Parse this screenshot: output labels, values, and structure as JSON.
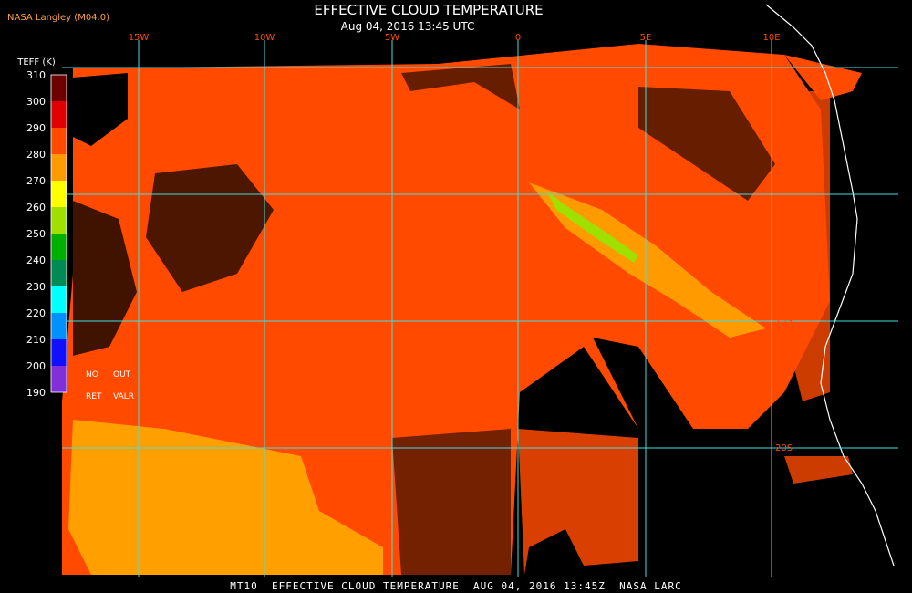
{
  "header": {
    "source": "NASA Langley (M04.0)",
    "title": "EFFECTIVE CLOUD TEMPERATURE",
    "timestamp": "Aug 04, 2016 13:45 UTC"
  },
  "longitude_labels": [
    "15W",
    "10W",
    "5W",
    "0",
    "5E",
    "10E"
  ],
  "latitude_labels": [
    "15S",
    "20S"
  ],
  "legend": {
    "title": "TEFF (K)",
    "ticks": [
      310,
      300,
      290,
      280,
      270,
      260,
      250,
      240,
      230,
      220,
      210,
      200,
      190
    ],
    "colors": [
      "#6e0000",
      "#e00000",
      "#ff4a00",
      "#ff9a00",
      "#ffff00",
      "#a0e000",
      "#00b000",
      "#008a55",
      "#00ffff",
      "#0090ff",
      "#1010ff",
      "#8030d8"
    ],
    "notes": [
      "NO",
      "OUT",
      "RET",
      "VALR"
    ]
  },
  "footer": "MT10  EFFECTIVE CLOUD TEMPERATURE  AUG 04, 2016 13:45Z  NASA LARC"
}
